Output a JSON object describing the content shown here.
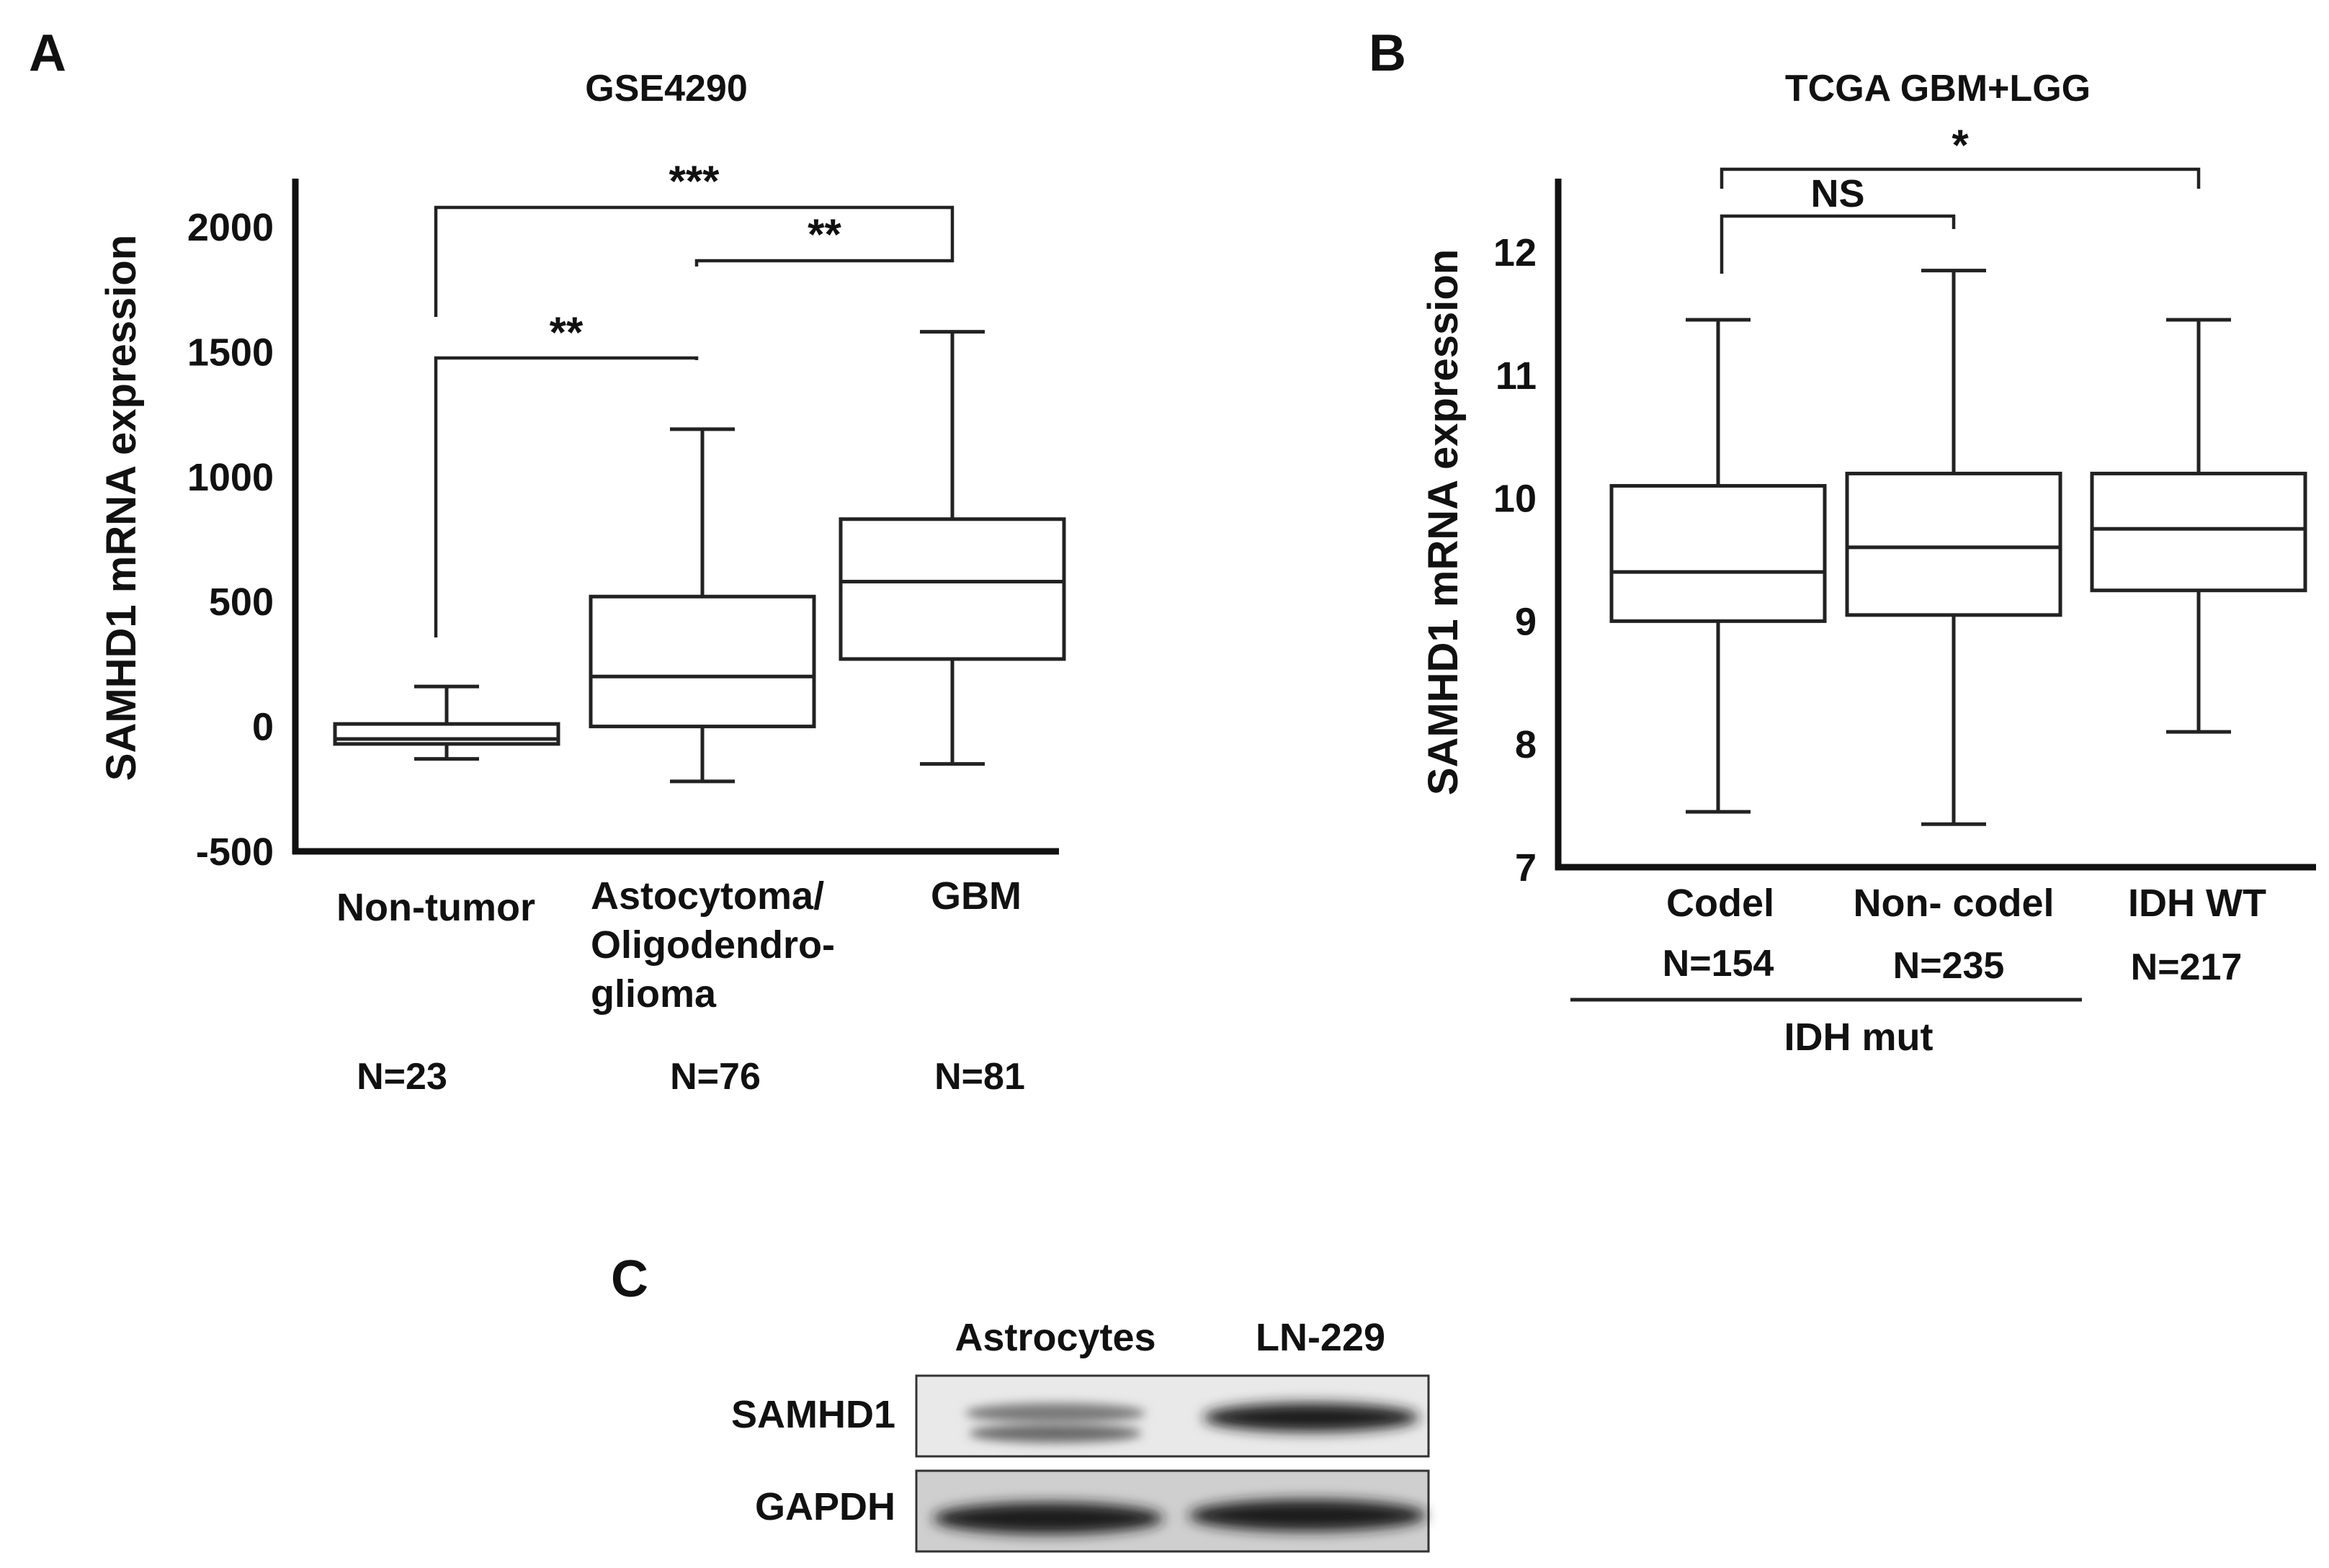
{
  "panels": {
    "A": {
      "letter": "A",
      "title": "GSE4290",
      "ylabel": "SAMHD1 mRNA expression",
      "n_labels": [
        "N=23",
        "N=76",
        "N=81"
      ],
      "significance": [
        "***",
        "**",
        "**"
      ]
    },
    "B": {
      "letter": "B",
      "title": "TCGA GBM+LGG",
      "ylabel": "SAMHD1 mRNA expression",
      "n_labels": [
        "N=154",
        "N=235",
        "N=217"
      ],
      "group_label": "IDH mut",
      "significance": [
        "*",
        "NS"
      ]
    },
    "C": {
      "letter": "C",
      "columns": [
        "Astrocytes",
        "LN-229"
      ],
      "rows": [
        "SAMHD1",
        "GAPDH"
      ]
    }
  },
  "chart_data": [
    {
      "type": "box",
      "title": "GSE4290",
      "ylabel": "SAMHD1 mRNA expression",
      "ylim": [
        -500,
        2000
      ],
      "yticks": [
        2000,
        1500,
        1000,
        500,
        0,
        -500
      ],
      "categories": [
        "Non-tumor",
        "Astocytoma/ Oligodendro- glioma",
        "GBM"
      ],
      "category_lines": [
        [
          "Non-tumor"
        ],
        [
          "Astocytoma/",
          "Oligodendro-",
          "glioma"
        ],
        [
          "GBM"
        ]
      ],
      "boxes": [
        {
          "min": -130,
          "q1": -70,
          "median": -50,
          "q3": 10,
          "max": 160
        },
        {
          "min": -220,
          "q1": 0,
          "median": 200,
          "q3": 520,
          "max": 1190
        },
        {
          "min": -150,
          "q1": 270,
          "median": 580,
          "q3": 830,
          "max": 1580
        }
      ],
      "comparisons": [
        {
          "groups": [
            0,
            2
          ],
          "label": "***"
        },
        {
          "groups": [
            1,
            2
          ],
          "label": "**"
        },
        {
          "groups": [
            0,
            1
          ],
          "label": "**"
        }
      ]
    },
    {
      "type": "box",
      "title": "TCGA GBM+LGG",
      "ylabel": "SAMHD1 mRNA expression",
      "ylim": [
        7,
        12.5
      ],
      "yticks": [
        12,
        11,
        10,
        9,
        8,
        7
      ],
      "categories": [
        "Codel",
        "Non- codel",
        "IDH WT"
      ],
      "boxes": [
        {
          "min": 7.45,
          "q1": 9.0,
          "median": 9.4,
          "q3": 10.1,
          "max": 11.45
        },
        {
          "min": 7.35,
          "q1": 9.05,
          "median": 9.6,
          "q3": 10.2,
          "max": 11.85
        },
        {
          "min": 8.1,
          "q1": 9.25,
          "median": 9.75,
          "q3": 10.2,
          "max": 11.45
        }
      ],
      "comparisons": [
        {
          "groups": [
            0,
            2
          ],
          "label": "*"
        },
        {
          "groups": [
            0,
            1
          ],
          "label": "NS"
        }
      ]
    }
  ]
}
